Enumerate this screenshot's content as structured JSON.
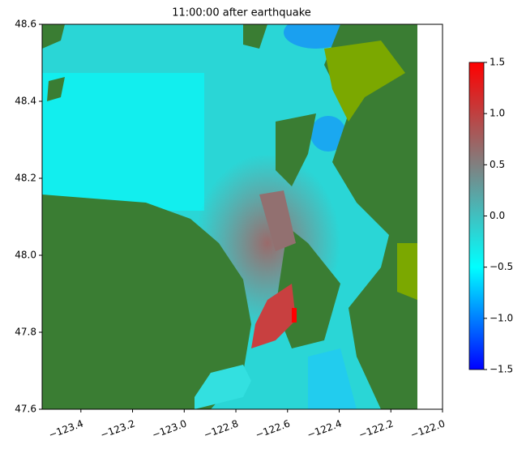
{
  "chart_data": {
    "type": "heatmap",
    "title": "11:00:00 after earthquake",
    "xlim": [
      -123.55,
      -122.0
    ],
    "xticks": [
      {
        "value": -123.4,
        "label": "−123.4"
      },
      {
        "value": -123.2,
        "label": "−123.2"
      },
      {
        "value": -123.0,
        "label": "−123.0"
      },
      {
        "value": -122.8,
        "label": "−122.8"
      },
      {
        "value": -122.6,
        "label": "−122.6"
      },
      {
        "value": -122.4,
        "label": "−122.4"
      },
      {
        "value": -122.2,
        "label": "−122.2"
      },
      {
        "value": -122.0,
        "label": "−122.0"
      }
    ],
    "ylim": [
      47.6,
      48.6
    ],
    "yticks": [
      {
        "value": 47.6,
        "label": "47.6"
      },
      {
        "value": 47.8,
        "label": "47.8"
      },
      {
        "value": 48.0,
        "label": "48.0"
      },
      {
        "value": 48.2,
        "label": "48.2"
      },
      {
        "value": 48.4,
        "label": "48.4"
      },
      {
        "value": 48.6,
        "label": "48.6"
      }
    ],
    "colorbar": {
      "lim": [
        -1.5,
        1.5
      ],
      "ticks": [
        {
          "value": -1.5,
          "label": "−1.5"
        },
        {
          "value": -1.0,
          "label": "−1.0"
        },
        {
          "value": -0.5,
          "label": "−0.5"
        },
        {
          "value": 0.0,
          "label": "0.0"
        },
        {
          "value": 0.5,
          "label": "0.5"
        },
        {
          "value": 1.0,
          "label": "1.0"
        },
        {
          "value": 1.5,
          "label": "1.5"
        }
      ],
      "colors": [
        "#0000ff",
        "#00ffff",
        "#808080",
        "#ff0000"
      ]
    }
  }
}
